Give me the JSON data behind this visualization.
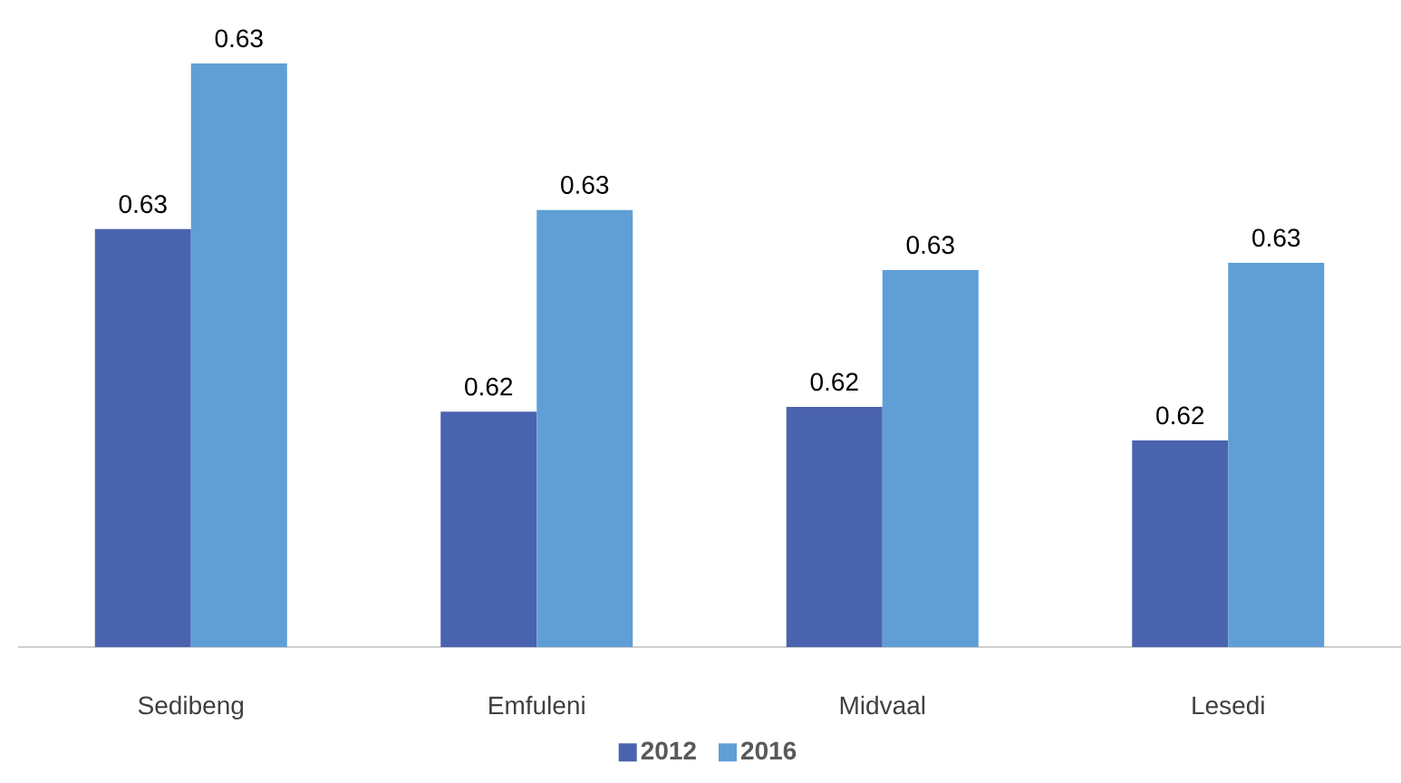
{
  "chart_data": {
    "type": "bar",
    "categories": [
      "Sedibeng",
      "Emfuleni",
      "Midvaal",
      "Lesedi"
    ],
    "series": [
      {
        "name": "2012",
        "color": "#4a63ae",
        "values": [
          0.6274,
          0.6198,
          0.62,
          0.6186
        ],
        "value_labels": [
          "0.63",
          "0.62",
          "0.62",
          "0.62"
        ]
      },
      {
        "name": "2016",
        "color": "#5f9fd6",
        "values": [
          0.6343,
          0.6282,
          0.6257,
          0.626
        ],
        "value_labels": [
          "0.63",
          "0.63",
          "0.63",
          "0.63"
        ]
      }
    ],
    "ylim": [
      0.61,
      0.6343
    ],
    "tick_labels": "x",
    "legend": "bottom"
  }
}
